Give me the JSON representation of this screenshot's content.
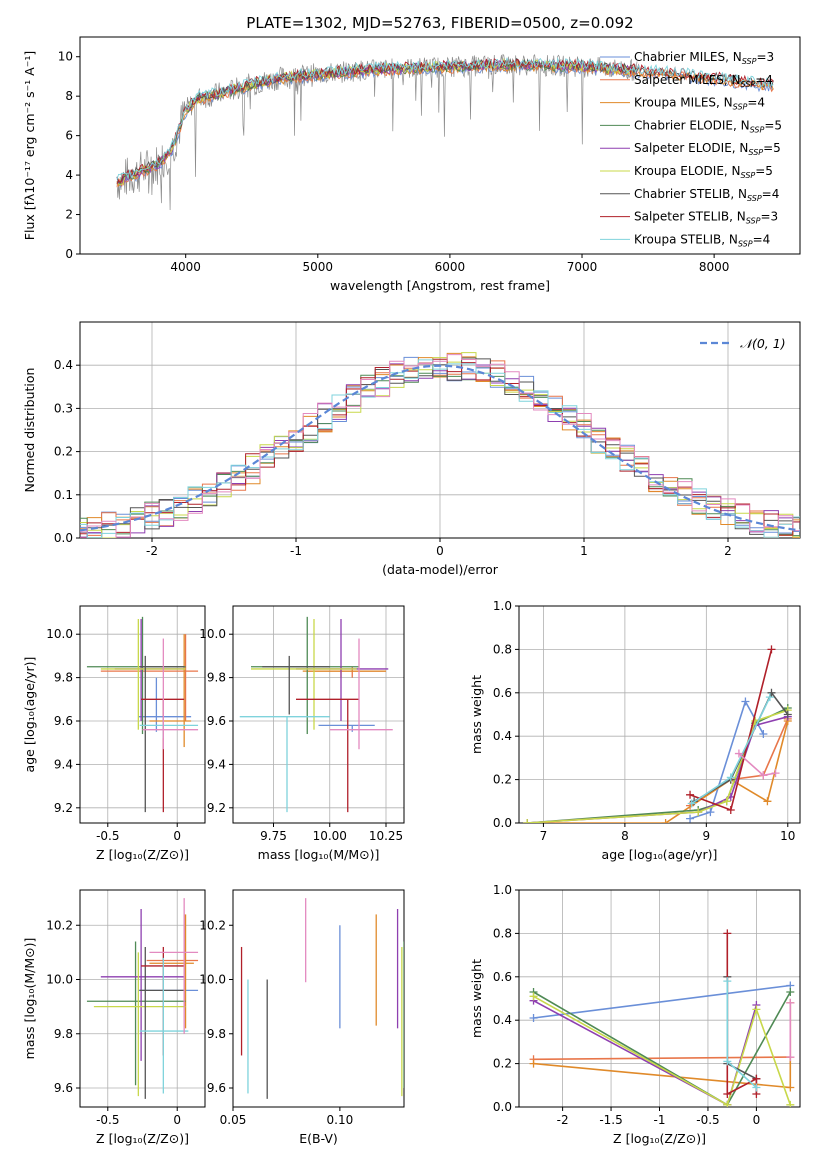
{
  "figure_title": "PLATE=1302, MJD=52763, FIBERID=0500, z=0.092",
  "colors": {
    "Chabrier MILES": "#6a8fd8",
    "Salpeter MILES": "#e8764a",
    "Kroupa MILES": "#e08a2a",
    "Chabrier ELODIE": "#4f8a55",
    "Salpeter ELODIE": "#8e3fb0",
    "Kroupa ELODIE": "#c8d84a",
    "Chabrier STELIB": "#555555",
    "Salpeter STELIB": "#b0202a",
    "Kroupa STELIB": "#7fd3dc",
    "normal_curve": "#5b87d6",
    "pink_extra": "#e38ac0"
  },
  "chart_data": [
    {
      "type": "line",
      "id": "spectrum",
      "xlabel": "wavelength [Angstrom, rest frame]",
      "ylabel": "Flux [fλ10⁻¹⁷ erg cm⁻² s⁻¹ A⁻¹]",
      "xlim": [
        3200,
        8650
      ],
      "ylim": [
        0,
        11
      ],
      "xticks": [
        4000,
        5000,
        6000,
        7000,
        8000
      ],
      "yticks": [
        0,
        2,
        4,
        6,
        8,
        10
      ],
      "grid": false,
      "legend_placement": "right",
      "legend": [
        {
          "text": "Chabrier MILES, N",
          "sub": "SSP",
          "suffix": "=3"
        },
        {
          "text": "Salpeter MILES, N",
          "sub": "SSP",
          "suffix": "=4"
        },
        {
          "text": "Kroupa MILES, N",
          "sub": "SSP",
          "suffix": "=4"
        },
        {
          "text": "Chabrier ELODIE, N",
          "sub": "SSP",
          "suffix": "=5"
        },
        {
          "text": "Salpeter ELODIE, N",
          "sub": "SSP",
          "suffix": "=5"
        },
        {
          "text": "Kroupa ELODIE, N",
          "sub": "SSP",
          "suffix": "=5"
        },
        {
          "text": "Chabrier STELIB, N",
          "sub": "SSP",
          "suffix": "=4"
        },
        {
          "text": "Salpeter STELIB, N",
          "sub": "SSP",
          "suffix": "=3"
        },
        {
          "text": "Kroupa STELIB, N",
          "sub": "SSP",
          "suffix": "=4"
        }
      ],
      "continuum_x": [
        3500,
        3600,
        3700,
        3800,
        3900,
        4000,
        4100,
        4300,
        4500,
        4700,
        5000,
        5300,
        5600,
        6000,
        6500,
        7000,
        7400,
        7600,
        8000,
        8500
      ],
      "continuum_y": [
        3.7,
        4.0,
        4.3,
        4.6,
        5.4,
        7.3,
        7.9,
        8.2,
        8.6,
        8.9,
        9.1,
        9.3,
        9.4,
        9.5,
        9.6,
        9.5,
        9.3,
        9.2,
        8.9,
        8.5
      ]
    },
    {
      "type": "bar",
      "id": "residuals",
      "xlabel": "(data-model)/error",
      "ylabel": "Normed distribution",
      "xlim": [
        -2.5,
        2.5
      ],
      "ylim": [
        0,
        0.5
      ],
      "xticks": [
        -2,
        -1,
        0,
        1,
        2
      ],
      "yticks": [
        0.0,
        0.1,
        0.2,
        0.3,
        0.4
      ],
      "grid": true,
      "legend_placement": "top-right",
      "legend": "𝒩(0, 1)",
      "bin_width": 0.1
    },
    {
      "type": "scatter",
      "id": "age_vs_Z",
      "xlabel": "Z [log₁₀(Z/Z⊙)]",
      "ylabel": "age  [log₁₀(age/yr)]",
      "xlim": [
        -0.7,
        0.2
      ],
      "ylim": [
        9.13,
        10.13
      ],
      "xticks": [
        -0.5,
        0.0
      ],
      "yticks": [
        9.2,
        9.4,
        9.6,
        9.8,
        10.0
      ],
      "grid": true,
      "points": [
        {
          "series": "Chabrier MILES",
          "x": -0.15,
          "y": 9.62,
          "xe": [
            -0.28,
            0.1
          ],
          "ye": [
            9.55,
            9.8
          ]
        },
        {
          "series": "Salpeter MILES",
          "x": 0.06,
          "y": 9.83,
          "xe": [
            -0.55,
            0.15
          ],
          "ye": [
            9.6,
            10.0
          ]
        },
        {
          "series": "Kroupa MILES",
          "x": 0.05,
          "y": 9.6,
          "xe": [
            -0.2,
            0.1
          ],
          "ye": [
            9.48,
            10.0
          ]
        },
        {
          "series": "Chabrier ELODIE",
          "x": -0.25,
          "y": 9.85,
          "xe": [
            -0.65,
            0.06
          ],
          "ye": [
            9.54,
            10.08
          ]
        },
        {
          "series": "Salpeter ELODIE",
          "x": -0.26,
          "y": 9.84,
          "xe": [
            -0.45,
            0.05
          ],
          "ye": [
            9.6,
            10.07
          ]
        },
        {
          "series": "Kroupa ELODIE",
          "x": -0.28,
          "y": 9.84,
          "xe": [
            -0.55,
            0.06
          ],
          "ye": [
            9.56,
            10.07
          ]
        },
        {
          "series": "Chabrier STELIB",
          "x": -0.23,
          "y": 9.85,
          "xe": [
            -0.27,
            0.05
          ],
          "ye": [
            9.18,
            9.9
          ]
        },
        {
          "series": "Salpeter STELIB",
          "x": -0.1,
          "y": 9.7,
          "xe": [
            -0.26,
            0.05
          ],
          "ye": [
            9.18,
            9.7
          ]
        },
        {
          "series": "Kroupa STELIB",
          "x": -0.1,
          "y": 9.58,
          "xe": [
            -0.27,
            0.15
          ],
          "ye": [
            9.52,
            9.62
          ]
        },
        {
          "series": "pink",
          "x": -0.1,
          "y": 9.56,
          "xe": [
            -0.25,
            0.15
          ],
          "ye": [
            9.47,
            9.98
          ]
        }
      ]
    },
    {
      "type": "scatter",
      "id": "age_vs_mass",
      "xlabel": "mass [log₁₀(M/M⊙)]",
      "xlim": [
        9.57,
        10.33
      ],
      "ylim": [
        9.13,
        10.13
      ],
      "xticks": [
        9.75,
        10.0,
        10.25
      ],
      "xtick_labels": [
        "9.75",
        "10.00",
        "10.25"
      ],
      "yticks": [
        9.2,
        9.4,
        9.6,
        9.8,
        10.0
      ],
      "grid": true,
      "points": [
        {
          "series": "Chabrier MILES",
          "x": 10.1,
          "y": 9.58,
          "xe": [
            9.95,
            10.2
          ],
          "ye": [
            9.55,
            9.58
          ]
        },
        {
          "series": "Salpeter MILES",
          "x": 10.1,
          "y": 9.83,
          "xe": [
            9.9,
            10.25
          ],
          "ye": [
            9.8,
            9.85
          ]
        },
        {
          "series": "Kroupa MILES",
          "x": 10.05,
          "y": 9.83,
          "xe": [
            9.88,
            10.25
          ],
          "ye": [
            9.8,
            9.85
          ]
        },
        {
          "series": "Chabrier ELODIE",
          "x": 9.9,
          "y": 9.85,
          "xe": [
            9.65,
            10.13
          ],
          "ye": [
            9.54,
            10.08
          ]
        },
        {
          "series": "Salpeter ELODIE",
          "x": 10.05,
          "y": 9.84,
          "xe": [
            9.85,
            10.26
          ],
          "ye": [
            9.6,
            10.07
          ]
        },
        {
          "series": "Kroupa ELODIE",
          "x": 9.93,
          "y": 9.84,
          "xe": [
            9.65,
            10.12
          ],
          "ye": [
            9.56,
            10.07
          ]
        },
        {
          "series": "Chabrier STELIB",
          "x": 9.82,
          "y": 9.85,
          "xe": [
            9.7,
            10.0
          ],
          "ye": [
            9.63,
            9.9
          ]
        },
        {
          "series": "Salpeter STELIB",
          "x": 10.08,
          "y": 9.7,
          "xe": [
            9.85,
            10.13
          ],
          "ye": [
            9.18,
            9.7
          ]
        },
        {
          "series": "Kroupa STELIB",
          "x": 9.81,
          "y": 9.62,
          "xe": [
            9.6,
            10.0
          ],
          "ye": [
            9.18,
            9.62
          ]
        },
        {
          "series": "pink",
          "x": 10.13,
          "y": 9.56,
          "xe": [
            10.0,
            10.28
          ],
          "ye": [
            9.47,
            9.98
          ]
        }
      ]
    },
    {
      "type": "line",
      "id": "weight_vs_age",
      "xlabel": "age  [log₁₀(age/yr)]",
      "ylabel": "mass weight",
      "xlim": [
        6.7,
        10.15
      ],
      "ylim": [
        0,
        1
      ],
      "xticks": [
        7,
        8,
        9,
        10
      ],
      "yticks": [
        0.0,
        0.2,
        0.4,
        0.6,
        0.8,
        1.0
      ],
      "grid": true,
      "series": [
        {
          "name": "Chabrier MILES",
          "x": [
            8.8,
            9.05,
            9.48,
            9.7
          ],
          "y": [
            0.02,
            0.05,
            0.56,
            0.41
          ]
        },
        {
          "name": "Salpeter MILES",
          "x": [
            8.8,
            9.3,
            9.7,
            10.0
          ],
          "y": [
            0.08,
            0.2,
            0.22,
            0.48
          ]
        },
        {
          "name": "Kroupa MILES",
          "x": [
            6.8,
            8.5,
            9.3,
            9.75,
            10.0
          ],
          "y": [
            0.0,
            0.0,
            0.2,
            0.1,
            0.47
          ]
        },
        {
          "name": "Chabrier ELODIE",
          "x": [
            6.8,
            8.9,
            9.25,
            9.6,
            10.0
          ],
          "y": [
            0.0,
            0.06,
            0.1,
            0.46,
            0.53
          ]
        },
        {
          "name": "Salpeter ELODIE",
          "x": [
            6.8,
            8.9,
            9.3,
            9.6,
            10.0
          ],
          "y": [
            0.0,
            0.05,
            0.12,
            0.45,
            0.49
          ]
        },
        {
          "name": "Kroupa ELODIE",
          "x": [
            6.8,
            8.9,
            9.25,
            9.6,
            10.0
          ],
          "y": [
            0.0,
            0.05,
            0.1,
            0.47,
            0.52
          ]
        },
        {
          "name": "Chabrier STELIB",
          "x": [
            8.85,
            9.3,
            9.8,
            10.0
          ],
          "y": [
            0.1,
            0.2,
            0.6,
            0.5
          ]
        },
        {
          "name": "Salpeter STELIB",
          "x": [
            8.8,
            9.3,
            9.8
          ],
          "y": [
            0.13,
            0.06,
            0.8
          ]
        },
        {
          "name": "Kroupa STELIB",
          "x": [
            8.82,
            9.3,
            9.78
          ],
          "y": [
            0.09,
            0.21,
            0.58
          ]
        },
        {
          "name": "pink",
          "x": [
            9.4,
            9.7,
            9.85
          ],
          "y": [
            0.32,
            0.22,
            0.23
          ]
        }
      ]
    },
    {
      "type": "scatter",
      "id": "mass_vs_Z",
      "xlabel": "Z [log₁₀(Z/Z⊙)]",
      "ylabel": "mass [log₁₀(M/M⊙)]",
      "xlim": [
        -0.7,
        0.2
      ],
      "ylim": [
        9.53,
        10.33
      ],
      "xticks": [
        -0.5,
        0.0
      ],
      "yticks": [
        9.6,
        9.8,
        10.0,
        10.2
      ],
      "grid": true,
      "points": [
        {
          "series": "Chabrier MILES",
          "x": 0.0,
          "y": 9.96,
          "xe": [
            -0.28,
            0.15
          ],
          "ye": [
            9.96,
            9.96
          ]
        },
        {
          "series": "Salpeter MILES",
          "x": 0.05,
          "y": 10.07,
          "xe": [
            -0.22,
            0.15
          ],
          "ye": [
            9.9,
            10.24
          ]
        },
        {
          "series": "Kroupa MILES",
          "x": 0.06,
          "y": 10.06,
          "xe": [
            -0.2,
            0.12
          ],
          "ye": [
            9.82,
            10.24
          ]
        },
        {
          "series": "Chabrier ELODIE",
          "x": -0.3,
          "y": 9.92,
          "xe": [
            -0.65,
            0.06
          ],
          "ye": [
            9.61,
            10.14
          ]
        },
        {
          "series": "Salpeter ELODIE",
          "x": -0.26,
          "y": 10.01,
          "xe": [
            -0.55,
            0.05
          ],
          "ye": [
            9.7,
            10.26
          ]
        },
        {
          "series": "Kroupa ELODIE",
          "x": -0.28,
          "y": 9.9,
          "xe": [
            -0.6,
            0.06
          ],
          "ye": [
            9.57,
            10.1
          ]
        },
        {
          "series": "Chabrier STELIB",
          "x": -0.23,
          "y": 9.96,
          "xe": [
            -0.27,
            0.05
          ],
          "ye": [
            9.56,
            10.12
          ]
        },
        {
          "series": "Salpeter STELIB",
          "x": -0.1,
          "y": 10.05,
          "xe": [
            -0.26,
            0.05
          ],
          "ye": [
            9.72,
            10.12
          ]
        },
        {
          "series": "Kroupa STELIB",
          "x": -0.1,
          "y": 9.81,
          "xe": [
            -0.27,
            0.08
          ],
          "ye": [
            9.58,
            10.08
          ]
        },
        {
          "series": "pink",
          "x": 0.05,
          "y": 10.1,
          "xe": [
            -0.2,
            0.15
          ],
          "ye": [
            9.8,
            10.3
          ]
        }
      ]
    },
    {
      "type": "scatter",
      "id": "mass_vs_ebv",
      "xlabel": "E(B-V)",
      "xlim": [
        0.05,
        0.13
      ],
      "ylim": [
        9.53,
        10.33
      ],
      "xticks": [
        0.05,
        0.1
      ],
      "xtick_labels": [
        "0.05",
        "0.10"
      ],
      "yticks": [
        9.6,
        9.8,
        10.0,
        10.2
      ],
      "grid": false,
      "points": [
        {
          "series": "Chabrier MILES",
          "x": 0.1,
          "y": 10.01,
          "xe": [
            0.1,
            0.1
          ],
          "ye": [
            9.82,
            10.2
          ]
        },
        {
          "series": "Kroupa MILES",
          "x": 0.117,
          "y": 10.03,
          "xe": [
            0.117,
            0.117
          ],
          "ye": [
            9.83,
            10.24
          ]
        },
        {
          "series": "Salpeter ELODIE",
          "x": 0.127,
          "y": 10.05,
          "xe": [
            0.127,
            0.127
          ],
          "ye": [
            9.82,
            10.26
          ]
        },
        {
          "series": "Chabrier STELIB",
          "x": 0.066,
          "y": 9.75,
          "xe": [
            0.066,
            0.066
          ],
          "ye": [
            9.56,
            10.0
          ]
        },
        {
          "series": "Salpeter STELIB",
          "x": 0.054,
          "y": 9.92,
          "xe": [
            0.054,
            0.054
          ],
          "ye": [
            9.72,
            10.12
          ]
        },
        {
          "series": "Kroupa STELIB",
          "x": 0.057,
          "y": 9.78,
          "xe": [
            0.057,
            0.057
          ],
          "ye": [
            9.58,
            10.0
          ]
        },
        {
          "series": "Kroupa ELODIE",
          "x": 0.129,
          "y": 9.8,
          "xe": [
            0.129,
            0.129
          ],
          "ye": [
            9.57,
            10.12
          ]
        },
        {
          "series": "Chabrier ELODIE",
          "x": 0.13,
          "y": 9.9,
          "xe": [
            0.13,
            0.13
          ],
          "ye": [
            9.6,
            10.14
          ]
        },
        {
          "series": "pink",
          "x": 0.084,
          "y": 10.14,
          "xe": [
            0.084,
            0.084
          ],
          "ye": [
            9.99,
            10.3
          ]
        }
      ]
    },
    {
      "type": "line",
      "id": "weight_vs_Z",
      "xlabel": "Z [log₁₀(Z/Z⊙)]",
      "ylabel": "mass weight",
      "xlim": [
        -2.45,
        0.45
      ],
      "ylim": [
        0,
        1
      ],
      "xticks": [
        -2.0,
        -1.5,
        -1.0,
        -0.5,
        0.0
      ],
      "yticks": [
        0.0,
        0.2,
        0.4,
        0.6,
        0.8,
        1.0
      ],
      "grid": true,
      "series": [
        {
          "name": "Chabrier MILES",
          "x": [
            -2.3,
            0.35
          ],
          "y": [
            0.41,
            0.56
          ]
        },
        {
          "name": "Salpeter MILES",
          "x": [
            -2.3,
            0.35
          ],
          "y": [
            0.22,
            0.23
          ]
        },
        {
          "name": "Kroupa MILES",
          "x": [
            -2.3,
            0.35,
            0.35
          ],
          "y": [
            0.2,
            0.09,
            0.48
          ]
        },
        {
          "name": "Chabrier ELODIE",
          "x": [
            -2.3,
            -0.3,
            0.35
          ],
          "y": [
            0.53,
            0.01,
            0.53
          ]
        },
        {
          "name": "Salpeter ELODIE",
          "x": [
            -2.3,
            -0.3,
            0.0
          ],
          "y": [
            0.49,
            0.01,
            0.47
          ]
        },
        {
          "name": "Kroupa ELODIE",
          "x": [
            -2.3,
            -0.3,
            0.0,
            0.35
          ],
          "y": [
            0.51,
            0.01,
            0.45,
            0.01
          ]
        },
        {
          "name": "Chabrier STELIB",
          "x": [
            -0.3,
            -0.3,
            0.0
          ],
          "y": [
            0.6,
            0.2,
            0.13
          ]
        },
        {
          "name": "Salpeter STELIB",
          "x": [
            -0.3,
            -0.3,
            0.0,
            0.0
          ],
          "y": [
            0.8,
            0.06,
            0.13,
            0.06
          ]
        },
        {
          "name": "Kroupa STELIB",
          "x": [
            -0.3,
            -0.3,
            0.0
          ],
          "y": [
            0.58,
            0.21,
            0.09
          ]
        },
        {
          "name": "pink",
          "x": [
            0.35,
            0.35
          ],
          "y": [
            0.23,
            0.48
          ]
        }
      ]
    }
  ]
}
